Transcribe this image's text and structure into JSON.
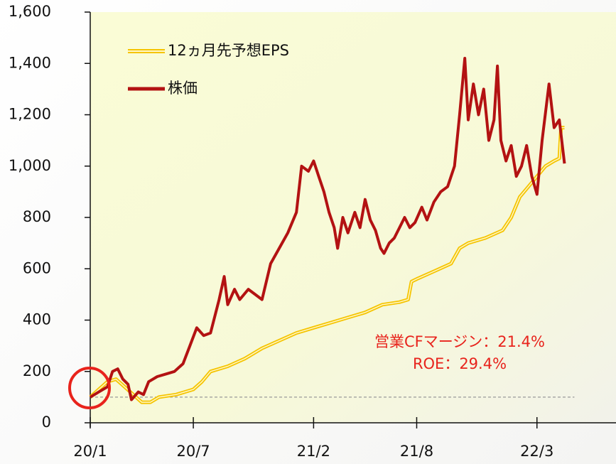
{
  "chart_data": {
    "type": "line",
    "x": [
      0,
      0.5,
      1,
      1.3,
      1.6,
      1.9,
      2.2,
      2.4,
      2.8,
      3.1,
      3.4,
      3.9,
      4.4,
      4.9,
      5.4,
      5.8,
      6.2,
      6.6,
      7.0,
      7.5,
      7.8,
      8.0,
      8.4,
      8.7,
      9.2,
      9.6,
      10.0,
      10.5,
      11.0,
      11.5,
      12.0,
      12.3,
      12.7,
      13.0,
      13.3,
      13.6,
      13.9,
      14.2,
      14.4,
      14.7,
      15.0,
      15.4,
      15.7,
      16.0,
      16.3,
      16.6,
      16.9,
      17.1,
      17.4,
      17.7,
      18.0,
      18.3,
      18.6,
      18.9,
      19.3,
      19.6,
      20.0,
      20.4,
      20.8,
      21.2,
      21.5,
      21.8,
      22.0,
      22.3,
      22.6,
      22.9,
      23.2,
      23.5,
      23.7,
      23.9,
      24.2,
      24.5,
      24.8,
      25.1,
      25.4,
      25.7,
      26.0,
      26.3,
      26.7,
      27.0,
      27.3,
      27.6
    ],
    "series": [
      {
        "name": "12ヵ月先予想EPS",
        "color": "#f5c400",
        "x": [
          0,
          1,
          1.5,
          2,
          2.5,
          3,
          3.5,
          4,
          5,
          6,
          6.5,
          7,
          8,
          9,
          10,
          11,
          12,
          13,
          14,
          15,
          16,
          17,
          18,
          18.5,
          18.7,
          19,
          20,
          21,
          21.5,
          22,
          23,
          24,
          24.5,
          25,
          25.5,
          26,
          26.5,
          27,
          27.3,
          27.4,
          27.6
        ],
        "values": [
          100,
          160,
          170,
          140,
          110,
          80,
          80,
          100,
          110,
          130,
          160,
          200,
          220,
          250,
          290,
          320,
          350,
          370,
          390,
          410,
          430,
          460,
          470,
          480,
          550,
          560,
          590,
          620,
          680,
          700,
          720,
          750,
          800,
          880,
          920,
          960,
          1000,
          1020,
          1030,
          1150,
          1150
        ]
      },
      {
        "name": "株価",
        "color": "#b31212",
        "values": [
          100,
          120,
          140,
          200,
          210,
          170,
          150,
          90,
          120,
          110,
          160,
          180,
          190,
          200,
          230,
          300,
          370,
          340,
          350,
          480,
          570,
          460,
          520,
          480,
          520,
          500,
          480,
          620,
          680,
          740,
          820,
          1000,
          980,
          1020,
          960,
          900,
          820,
          760,
          680,
          800,
          740,
          820,
          760,
          870,
          790,
          750,
          680,
          660,
          700,
          720,
          760,
          800,
          760,
          780,
          840,
          790,
          860,
          900,
          920,
          1000,
          1200,
          1420,
          1180,
          1320,
          1200,
          1300,
          1100,
          1180,
          1390,
          1100,
          1020,
          1080,
          960,
          1000,
          1080,
          960,
          890,
          1100,
          1320,
          1150,
          1180,
          1010
        ]
      }
    ],
    "xlim": [
      0,
      30.6
    ],
    "xticks": [
      {
        "value": 0,
        "label": "20/1"
      },
      {
        "value": 6,
        "label": "20/7"
      },
      {
        "value": 13,
        "label": "21/2"
      },
      {
        "value": 19,
        "label": "21/8"
      },
      {
        "value": 26,
        "label": "22/3"
      }
    ],
    "ylim": [
      0,
      1600
    ],
    "yticks": [
      0,
      200,
      400,
      600,
      800,
      {
        "value": 1000,
        "label": "1,000"
      },
      {
        "value": 1200,
        "label": "1,200"
      },
      {
        "value": 1400,
        "label": "1,400"
      },
      {
        "value": 1600,
        "label": "1,600"
      }
    ],
    "reference_line": 100,
    "annotations": [
      "営業CFマージン：21.4%",
      "ROE：29.4%"
    ],
    "legend": "upper left"
  }
}
